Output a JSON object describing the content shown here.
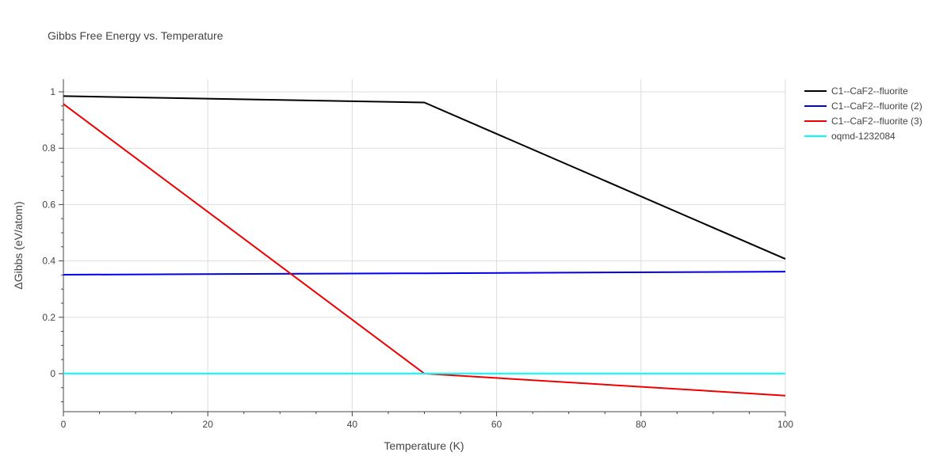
{
  "chart_data": {
    "type": "line",
    "title": "Gibbs Free Energy vs. Temperature",
    "xlabel": "Temperature (K)",
    "ylabel": "ΔGibbs (eV/atom)",
    "xlim": [
      0,
      100
    ],
    "ylim": [
      -0.135,
      1.045
    ],
    "x_ticks": [
      0,
      20,
      40,
      60,
      80,
      100
    ],
    "x_tick_labels": [
      "0",
      "20",
      "40",
      "60",
      "80",
      "100"
    ],
    "y_ticks": [
      0,
      0.2,
      0.4,
      0.6,
      0.8,
      1
    ],
    "y_tick_labels": [
      "0",
      "0.2",
      "0.4",
      "0.6",
      "0.8",
      "1"
    ],
    "grid": true,
    "legend_position": "top-right",
    "series": [
      {
        "name": "C1--CaF2--fluorite",
        "color": "#000000",
        "x": [
          0,
          50,
          100
        ],
        "y": [
          0.985,
          0.962,
          0.407
        ]
      },
      {
        "name": "C1--CaF2--fluorite (2)",
        "color": "#0000ee",
        "x": [
          0,
          50,
          100
        ],
        "y": [
          0.351,
          0.356,
          0.362
        ]
      },
      {
        "name": "C1--CaF2--fluorite (3)",
        "color": "#ee0000",
        "x": [
          0,
          50,
          100
        ],
        "y": [
          0.957,
          0.0,
          -0.078
        ]
      },
      {
        "name": "oqmd-1232084",
        "color": "#00ffff",
        "x": [
          0,
          50,
          100
        ],
        "y": [
          0.0,
          0.0,
          0.0
        ]
      }
    ]
  }
}
